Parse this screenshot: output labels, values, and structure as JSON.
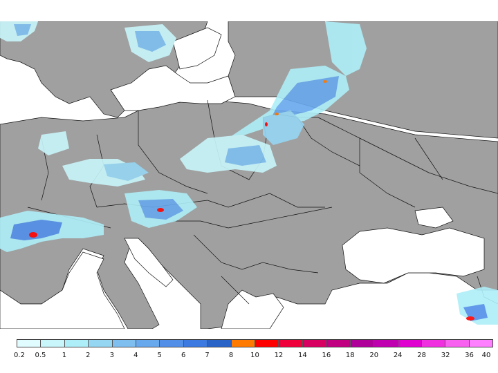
{
  "legend": {
    "colors": [
      "#e0fcff",
      "#c8f6fb",
      "#aeeef8",
      "#95d6f3",
      "#7ebff0",
      "#68a8ed",
      "#528fe9",
      "#3c79e0",
      "#2a63c8",
      "#ff7a00",
      "#ff0000",
      "#f0003a",
      "#d80060",
      "#c00080",
      "#b0009a",
      "#c000b0",
      "#e000d0",
      "#f030e0",
      "#f860f0",
      "#ff80ff"
    ],
    "labels": [
      "0.2",
      "0.5",
      "1",
      "2",
      "3",
      "4",
      "5",
      "6",
      "7",
      "8",
      "10",
      "12",
      "14",
      "16",
      "18",
      "20",
      "24",
      "28",
      "32",
      "36",
      "40"
    ]
  },
  "map": {
    "land_color": "#a0a0a0",
    "sea_color": "#ffffff",
    "border_color": "#111111"
  }
}
